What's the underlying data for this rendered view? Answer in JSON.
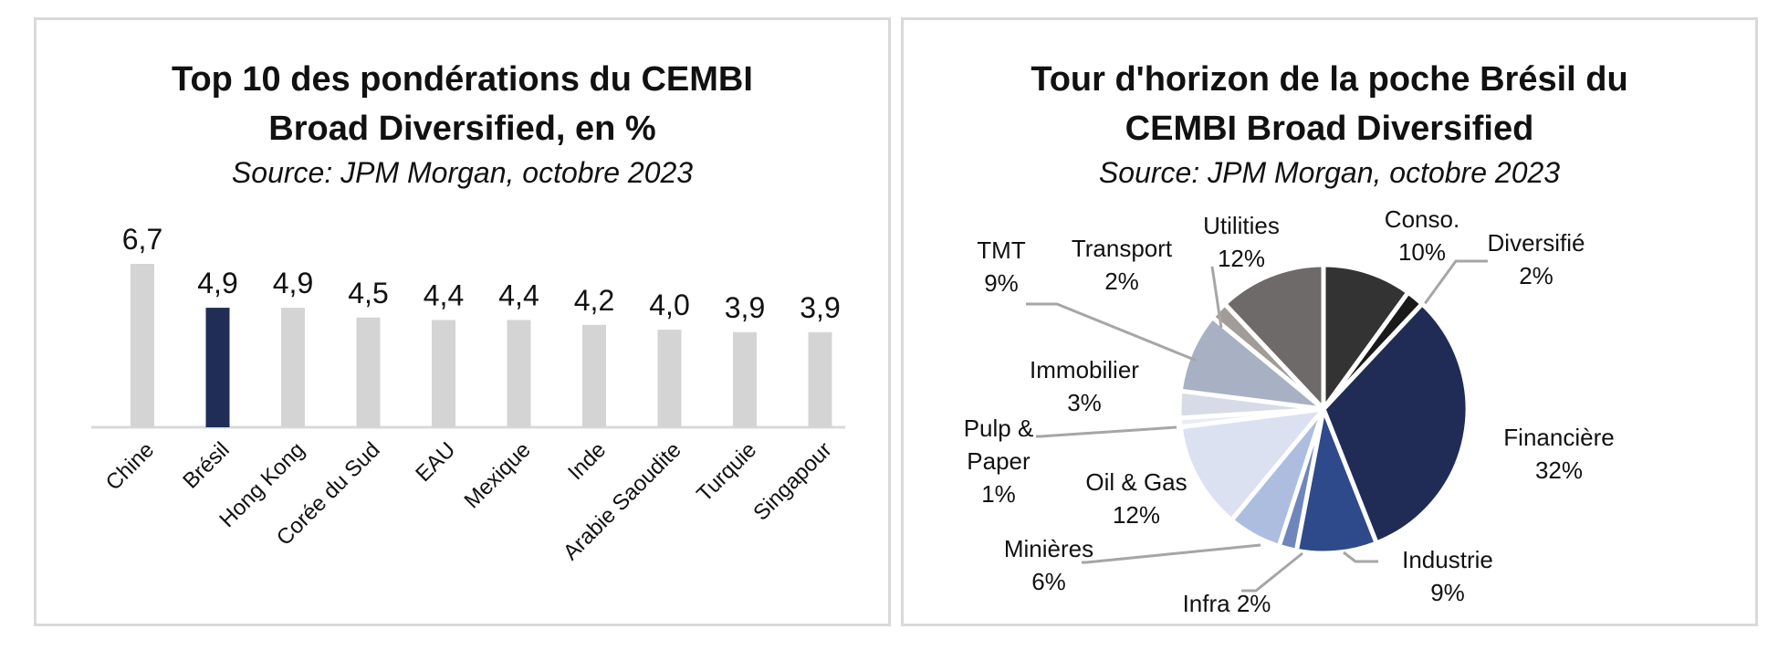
{
  "left_chart": {
    "title_line1": "Top 10 des pondérations du CEMBI",
    "title_line2": "Broad Diversified, en %",
    "source": "Source: JPM Morgan, octobre 2023"
  },
  "right_chart": {
    "title_line1": "Tour d'horizon de la poche Brésil du",
    "title_line2": "CEMBI Broad Diversified",
    "source": "Source: JPM Morgan, octobre 2023"
  },
  "chart_data": [
    {
      "type": "bar",
      "title": "Top 10 des pondérations du CEMBI Broad Diversified, en %",
      "subtitle": "Source: JPM Morgan, octobre 2023",
      "categories": [
        "Chine",
        "Brésil",
        "Hong Kong",
        "Corée du Sud",
        "EAU",
        "Mexique",
        "Inde",
        "Arabie Saoudite",
        "Turquie",
        "Singapour"
      ],
      "values": [
        6.7,
        4.9,
        4.9,
        4.5,
        4.4,
        4.4,
        4.2,
        4.0,
        3.9,
        3.9
      ],
      "value_labels": [
        "6,7",
        "4,9",
        "4,9",
        "4,5",
        "4,4",
        "4,4",
        "4,2",
        "4,0",
        "3,9",
        "3,9"
      ],
      "highlight_index": 1,
      "colors": {
        "default": "#d4d4d4",
        "highlight": "#1f2d57"
      },
      "ylim": [
        0,
        7
      ]
    },
    {
      "type": "pie",
      "title": "Tour d'horizon de la poche Brésil du CEMBI Broad Diversified",
      "subtitle": "Source: JPM Morgan, octobre 2023",
      "slices": [
        {
          "label": "Conso.",
          "pct_label": "10%",
          "value": 10,
          "color": "#333333"
        },
        {
          "label": "Diversifié",
          "pct_label": "2%",
          "value": 2,
          "color": "#1a1a1a"
        },
        {
          "label": "Financière",
          "pct_label": "32%",
          "value": 32,
          "color": "#212c56"
        },
        {
          "label": "Industrie",
          "pct_label": "9%",
          "value": 9,
          "color": "#2e4a8b"
        },
        {
          "label": "Infra 2%",
          "pct_label": "",
          "value": 2,
          "color": "#6f86bd"
        },
        {
          "label": "Minières",
          "pct_label": "6%",
          "value": 6,
          "color": "#acbde0"
        },
        {
          "label": "Oil & Gas",
          "pct_label": "12%",
          "value": 12,
          "color": "#dbe1f1"
        },
        {
          "label": "Pulp & Paper",
          "pct_label": "1%",
          "value": 1,
          "color": "#e9ecf5"
        },
        {
          "label": "Immobilier",
          "pct_label": "3%",
          "value": 3,
          "color": "#d6dbe7"
        },
        {
          "label": "TMT",
          "pct_label": "9%",
          "value": 9,
          "color": "#a7b1c3"
        },
        {
          "label": "Transport",
          "pct_label": "2%",
          "value": 2,
          "color": "#a19c98"
        },
        {
          "label": "Utilities",
          "pct_label": "12%",
          "value": 12,
          "color": "#6e6a69"
        }
      ]
    }
  ]
}
